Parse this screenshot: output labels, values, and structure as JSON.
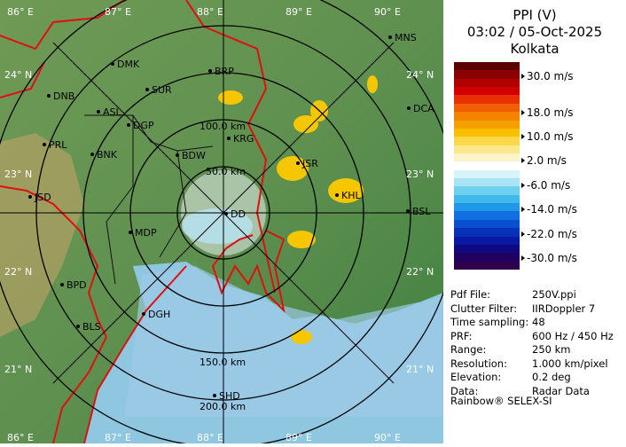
{
  "header": {
    "product": "PPI (V)",
    "datetime": "03:02 / 05-Oct-2025",
    "site": "Kolkata"
  },
  "colorbar": {
    "labels": [
      "30.0 m/s",
      "18.0 m/s",
      "10.0 m/s",
      "2.0 m/s",
      "-6.0 m/s",
      "-14.0 m/s",
      "-22.0 m/s",
      "-30.0 m/s"
    ],
    "colors": [
      "#5a0000",
      "#8b0000",
      "#b00000",
      "#d20000",
      "#e83000",
      "#f06000",
      "#f58200",
      "#f6a000",
      "#f8c000",
      "#fad84a",
      "#fbe88c",
      "#fcf4c8",
      "#ffffff",
      "#d8f4fb",
      "#a8e4f6",
      "#70d0f0",
      "#40b8ec",
      "#2098e8",
      "#1070e0",
      "#0850d0",
      "#0830b8",
      "#0818a0",
      "#100880",
      "#200060",
      "#30004a"
    ]
  },
  "info": [
    {
      "key": "Pdf File:",
      "value": "250V.ppi"
    },
    {
      "key": "Clutter Filter:",
      "value": "IIRDoppler 7"
    },
    {
      "key": "Time sampling:",
      "value": "48"
    },
    {
      "key": "PRF:",
      "value": "600 Hz / 450 Hz"
    },
    {
      "key": "Range:",
      "value": "250 km"
    },
    {
      "key": "Resolution:",
      "value": "1.000 km/pixel"
    },
    {
      "key": "Elevation:",
      "value": "0.2 deg"
    },
    {
      "key": "Data:",
      "value": "Radar Data"
    }
  ],
  "footer": "Rainbow® SELEX-SI",
  "map": {
    "lon_labels": [
      "86° E",
      "87° E",
      "88° E",
      "89° E",
      "90° E"
    ],
    "lat_labels": [
      "24° N",
      "23° N",
      "22° N",
      "21° N"
    ],
    "range_rings": [
      "50.0 km",
      "100.0 km",
      "150.0 km",
      "200.0 km"
    ],
    "stations": [
      "MNS",
      "DMK",
      "BRP",
      "DNB",
      "SUR",
      "ASL",
      "DGP",
      "PRL",
      "BNK",
      "KRG",
      "DCA",
      "BDW",
      "JSR",
      "KHL",
      "JSD",
      "BSL",
      "MDP",
      "DD",
      "BPD",
      "DGH",
      "BLS",
      "SHD"
    ]
  }
}
